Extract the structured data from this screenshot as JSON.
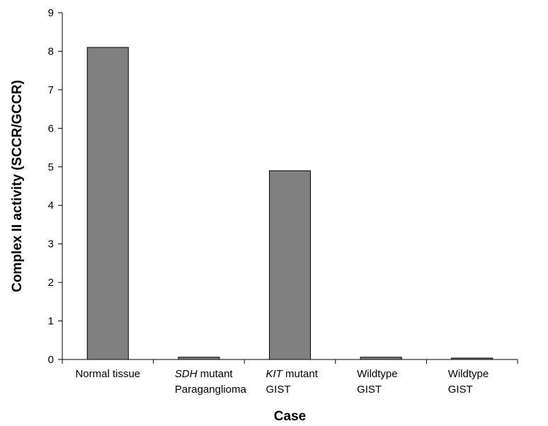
{
  "chart_data": {
    "type": "bar",
    "xlabel": "Case",
    "ylabel": "Complex II activity (SCCR/GCCR)",
    "ylim": [
      0,
      9
    ],
    "yticks": [
      0,
      1,
      2,
      3,
      4,
      5,
      6,
      7,
      8,
      9
    ],
    "grid": false,
    "bar_color": "#808080",
    "categories": [
      {
        "line1_italic": "",
        "line1_rest": "Normal tissue",
        "line2": ""
      },
      {
        "line1_italic": "SDH",
        "line1_rest": " mutant",
        "line2": "Paraganglioma"
      },
      {
        "line1_italic": "KIT",
        "line1_rest": " mutant",
        "line2": "GIST"
      },
      {
        "line1_italic": "",
        "line1_rest": "Wildtype",
        "line2": "GIST"
      },
      {
        "line1_italic": "",
        "line1_rest": "Wildtype",
        "line2": "GIST"
      }
    ],
    "values": [
      8.1,
      0.06,
      4.9,
      0.06,
      0.03
    ]
  }
}
